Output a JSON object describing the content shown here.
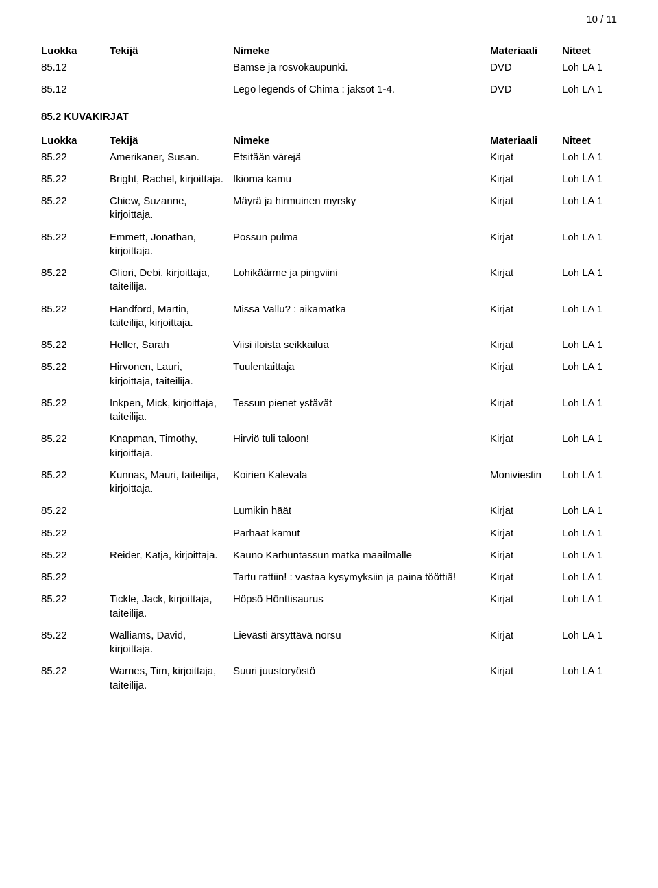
{
  "page_number": "10 / 11",
  "headers": {
    "luokka": "Luokka",
    "tekija": "Tekijä",
    "nimeke": "Nimeke",
    "materiaali": "Materiaali",
    "niteet": "Niteet"
  },
  "section1_rows": [
    {
      "luokka": "85.12",
      "tekija": "",
      "nimeke": "Bamse ja rosvokaupunki.",
      "materiaali": "DVD",
      "niteet": "Loh LA 1"
    },
    {
      "luokka": "85.12",
      "tekija": "",
      "nimeke": "Lego legends of Chima : jaksot 1-4.",
      "materiaali": "DVD",
      "niteet": "Loh LA 1"
    }
  ],
  "section2_title": "85.2 KUVAKIRJAT",
  "section2_rows": [
    {
      "luokka": "85.22",
      "tekija": "Amerikaner, Susan.",
      "nimeke": "Etsitään värejä",
      "materiaali": "Kirjat",
      "niteet": "Loh LA 1"
    },
    {
      "luokka": "85.22",
      "tekija": "Bright, Rachel, kirjoittaja.",
      "nimeke": "Ikioma kamu",
      "materiaali": "Kirjat",
      "niteet": "Loh LA 1"
    },
    {
      "luokka": "85.22",
      "tekija": "Chiew, Suzanne, kirjoittaja.",
      "nimeke": "Mäyrä ja hirmuinen myrsky",
      "materiaali": "Kirjat",
      "niteet": "Loh LA 1"
    },
    {
      "luokka": "85.22",
      "tekija": "Emmett, Jonathan, kirjoittaja.",
      "nimeke": "Possun pulma",
      "materiaali": "Kirjat",
      "niteet": "Loh LA 1"
    },
    {
      "luokka": "85.22",
      "tekija": "Gliori, Debi, kirjoittaja, taiteilija.",
      "nimeke": "Lohikäärme ja pingviini",
      "materiaali": "Kirjat",
      "niteet": "Loh LA 1"
    },
    {
      "luokka": "85.22",
      "tekija": "Handford, Martin, taiteilija, kirjoittaja.",
      "nimeke": "Missä Vallu? : aikamatka",
      "materiaali": "Kirjat",
      "niteet": "Loh LA 1"
    },
    {
      "luokka": "85.22",
      "tekija": "Heller, Sarah",
      "nimeke": "Viisi iloista seikkailua",
      "materiaali": "Kirjat",
      "niteet": "Loh LA 1"
    },
    {
      "luokka": "85.22",
      "tekija": "Hirvonen, Lauri, kirjoittaja, taiteilija.",
      "nimeke": "Tuulentaittaja",
      "materiaali": "Kirjat",
      "niteet": "Loh LA 1"
    },
    {
      "luokka": "85.22",
      "tekija": "Inkpen, Mick, kirjoittaja, taiteilija.",
      "nimeke": "Tessun pienet ystävät",
      "materiaali": "Kirjat",
      "niteet": "Loh LA 1"
    },
    {
      "luokka": "85.22",
      "tekija": "Knapman, Timothy, kirjoittaja.",
      "nimeke": "Hirviö tuli taloon!",
      "materiaali": "Kirjat",
      "niteet": "Loh LA 1"
    },
    {
      "luokka": "85.22",
      "tekija": "Kunnas, Mauri, taiteilija, kirjoittaja.",
      "nimeke": "Koirien Kalevala",
      "materiaali": "Moniviestin",
      "niteet": "Loh LA 1"
    },
    {
      "luokka": "85.22",
      "tekija": "",
      "nimeke": "Lumikin häät",
      "materiaali": "Kirjat",
      "niteet": "Loh LA 1"
    },
    {
      "luokka": "85.22",
      "tekija": "",
      "nimeke": "Parhaat kamut",
      "materiaali": "Kirjat",
      "niteet": "Loh LA 1"
    },
    {
      "luokka": "85.22",
      "tekija": "Reider, Katja, kirjoittaja.",
      "nimeke": "Kauno Karhuntassun matka maailmalle",
      "materiaali": "Kirjat",
      "niteet": "Loh LA 1"
    },
    {
      "luokka": "85.22",
      "tekija": "",
      "nimeke": "Tartu rattiin! : vastaa kysymyksiin ja paina tööttiä!",
      "materiaali": "Kirjat",
      "niteet": "Loh LA 1"
    },
    {
      "luokka": "85.22",
      "tekija": "Tickle, Jack, kirjoittaja, taiteilija.",
      "nimeke": "Höpsö Hönttisaurus",
      "materiaali": "Kirjat",
      "niteet": "Loh LA 1"
    },
    {
      "luokka": "85.22",
      "tekija": "Walliams, David, kirjoittaja.",
      "nimeke": "Lievästi ärsyttävä norsu",
      "materiaali": "Kirjat",
      "niteet": "Loh LA 1"
    },
    {
      "luokka": "85.22",
      "tekija": "Warnes, Tim, kirjoittaja, taiteilija.",
      "nimeke": "Suuri juustoryöstö",
      "materiaali": "Kirjat",
      "niteet": "Loh LA 1"
    }
  ]
}
